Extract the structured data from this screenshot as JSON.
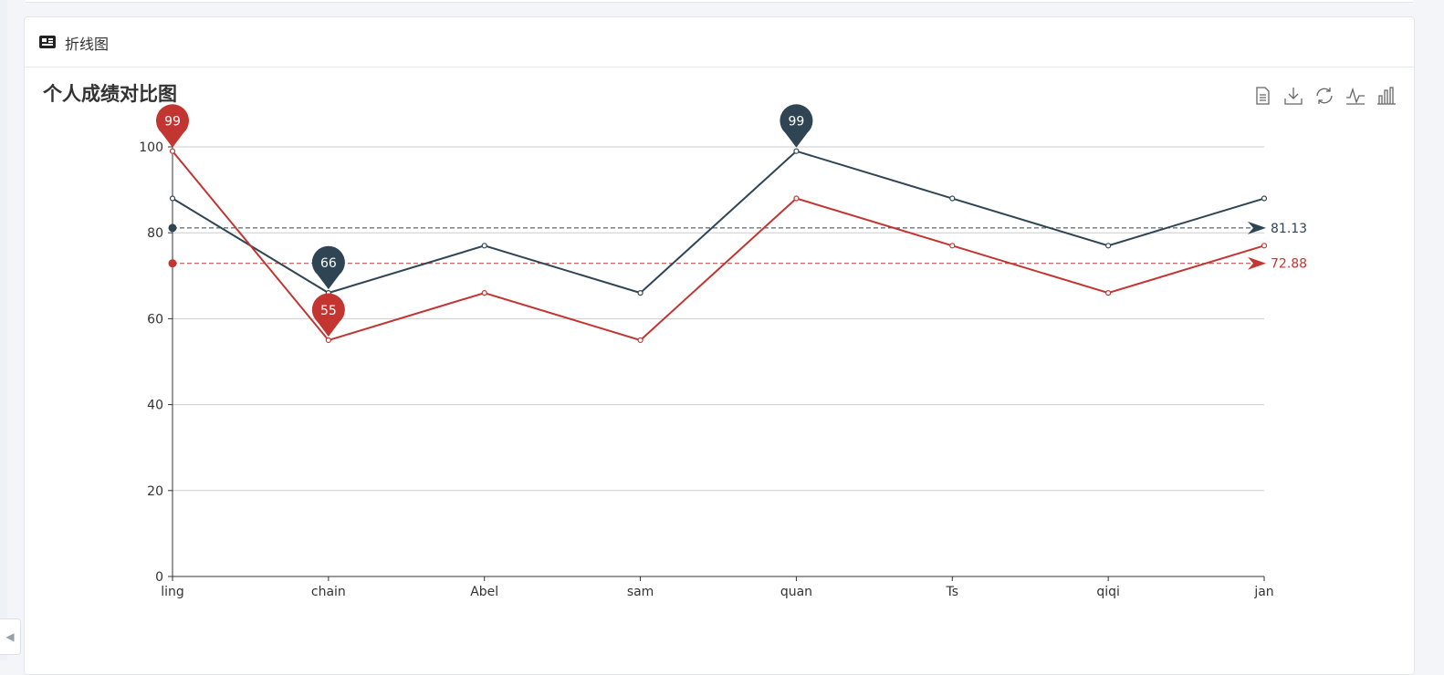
{
  "panel": {
    "title": "折线图",
    "icon": "newspaper-icon"
  },
  "toolbox": [
    {
      "name": "data-view-icon"
    },
    {
      "name": "save-image-icon"
    },
    {
      "name": "restore-icon"
    },
    {
      "name": "line-chart-icon"
    },
    {
      "name": "bar-chart-icon"
    }
  ],
  "chart_data": {
    "type": "line",
    "title": "个人成绩对比图",
    "categories": [
      "ling",
      "chain",
      "Abel",
      "sam",
      "quan",
      "Ts",
      "qiqi",
      "jan"
    ],
    "ylim": [
      0,
      100
    ],
    "yticks": [
      0,
      20,
      40,
      60,
      80,
      100
    ],
    "grid": true,
    "series": [
      {
        "color": "#2f4554",
        "values": [
          88,
          66,
          77,
          66,
          99,
          88,
          77,
          88
        ],
        "markPoints": [
          {
            "label": "66",
            "index": 1
          },
          {
            "label": "99",
            "index": 4
          }
        ],
        "average": 81.13,
        "averageLabel": "81.13"
      },
      {
        "color": "#c23531",
        "values": [
          99,
          55,
          66,
          55,
          88,
          77,
          66,
          77
        ],
        "markPoints": [
          {
            "label": "99",
            "index": 0
          },
          {
            "label": "55",
            "index": 1
          }
        ],
        "average": 72.88,
        "averageLabel": "72.88"
      }
    ]
  }
}
